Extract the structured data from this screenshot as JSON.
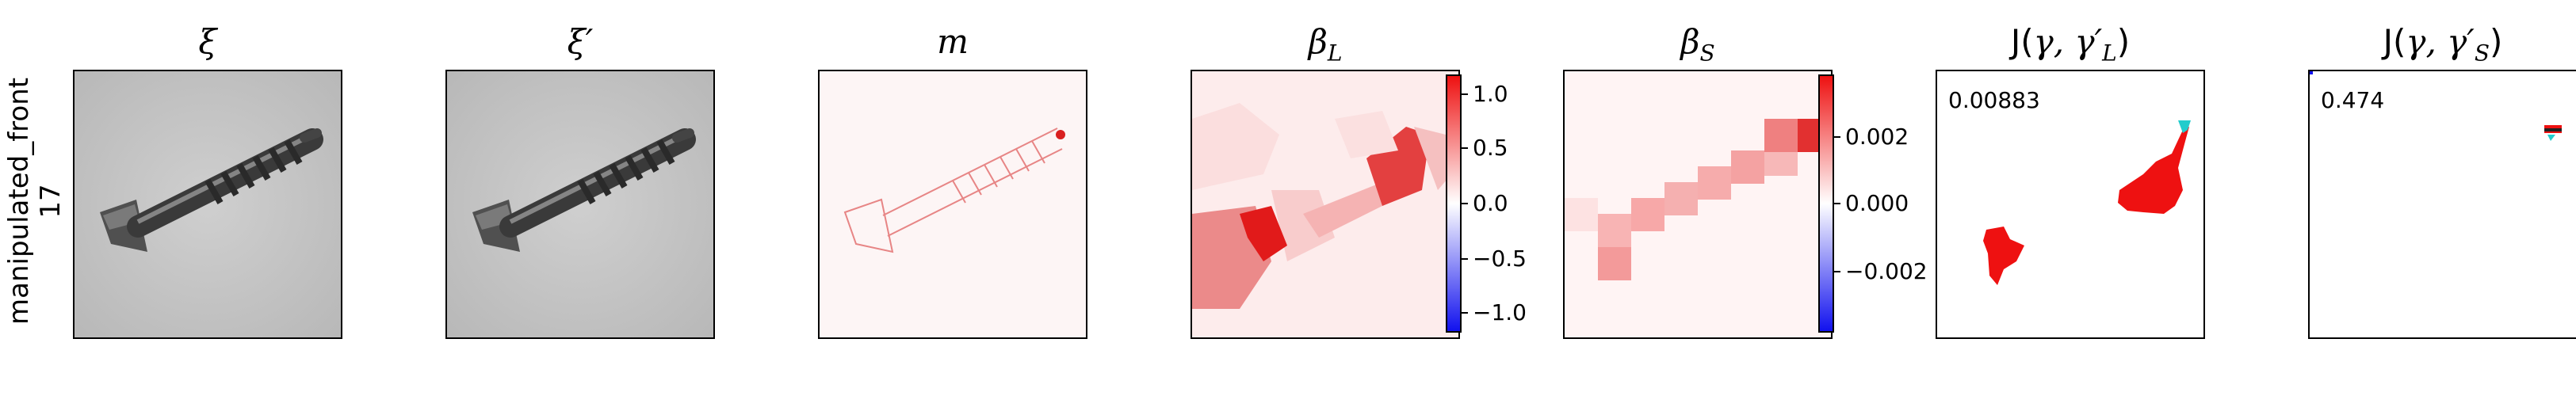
{
  "row_label": {
    "line1": "manipulated_front",
    "line2": "17"
  },
  "panels": [
    {
      "id": "xi",
      "title": "ξ"
    },
    {
      "id": "xi_prime",
      "title": "ξ′"
    },
    {
      "id": "m",
      "title": "m"
    },
    {
      "id": "beta_L",
      "title": "β",
      "sub": "L",
      "colorbar": {
        "ticks": [
          "1.0",
          "0.5",
          "0.0",
          "−0.5",
          "−1.0"
        ],
        "range": [
          -1.1,
          1.1
        ]
      }
    },
    {
      "id": "beta_S",
      "title": "β",
      "sub": "S",
      "colorbar": {
        "ticks": [
          "0.002",
          "0.000",
          "−0.002"
        ],
        "range": [
          -0.0038,
          0.0038
        ]
      }
    },
    {
      "id": "J_L",
      "title_pre": "J(",
      "title_math": "γ, γ′",
      "title_sub": "L",
      "title_post": ")",
      "score": "0.00883"
    },
    {
      "id": "J_S",
      "title_pre": "J(",
      "title_math": "γ, γ′",
      "title_sub": "S",
      "title_post": ")",
      "score": "0.474"
    }
  ],
  "colors": {
    "positive": "#ee1111",
    "negative": "#1111ee",
    "neutral": "#ffffff",
    "highlight": "#22cccc"
  }
}
